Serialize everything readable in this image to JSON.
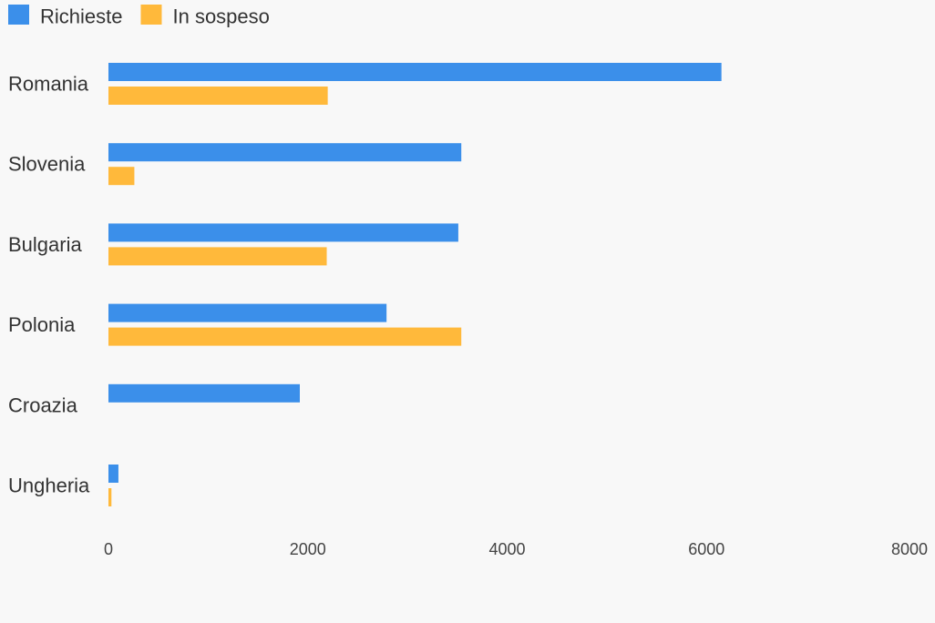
{
  "chart_data": {
    "type": "bar",
    "orientation": "horizontal",
    "title": "",
    "xlabel": "",
    "ylabel": "",
    "categories": [
      "Romania",
      "Slovenia",
      "Bulgaria",
      "Polonia",
      "Croazia",
      "Ungheria"
    ],
    "series": [
      {
        "name": "Richieste",
        "color": "#3b8fea",
        "values": [
          6150,
          3540,
          3510,
          2790,
          1920,
          100
        ]
      },
      {
        "name": "In sospeso",
        "color": "#ffb93b",
        "values": [
          2200,
          260,
          2190,
          3540,
          0,
          30
        ]
      }
    ],
    "xlim": [
      0,
      8000
    ],
    "xticks": [
      "0",
      "2000",
      "4000",
      "6000",
      "8000"
    ],
    "grid": false,
    "legend_position": "top-left"
  }
}
